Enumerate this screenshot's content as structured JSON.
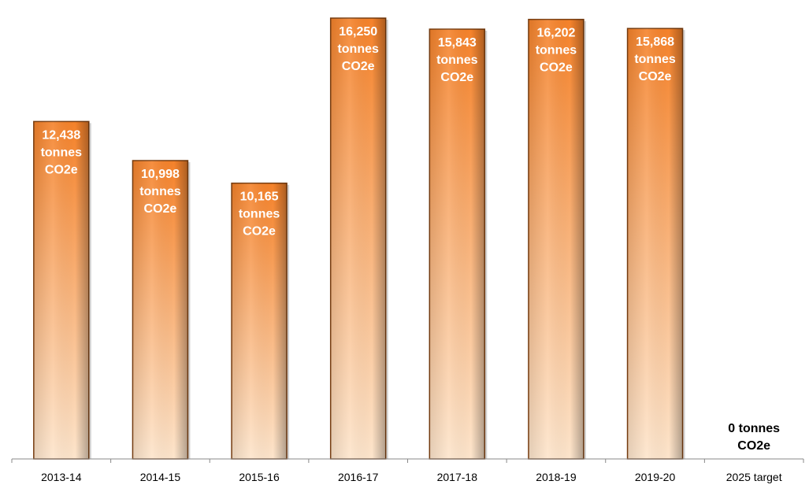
{
  "chart_data": {
    "type": "bar",
    "title": "",
    "xlabel": "",
    "ylabel": "",
    "categories": [
      "2013-14",
      "2014-15",
      "2015-16",
      "2016-17",
      "2017-18",
      "2018-19",
      "2019-20",
      "2025 target"
    ],
    "values": [
      12438,
      10998,
      10165,
      16250,
      15843,
      16202,
      15868,
      0
    ],
    "data_labels": [
      [
        "12,438",
        "tonnes",
        "CO2e"
      ],
      [
        "10,998",
        "tonnes",
        "CO2e"
      ],
      [
        "10,165",
        "tonnes",
        "CO2e"
      ],
      [
        "16,250",
        "tonnes",
        "CO2e"
      ],
      [
        "15,843",
        "tonnes",
        "CO2e"
      ],
      [
        "16,202",
        "tonnes",
        "CO2e"
      ],
      [
        "15,868",
        "tonnes",
        "CO2e"
      ],
      [
        "0 tonnes",
        "CO2e"
      ]
    ],
    "ylim": [
      0,
      16250
    ],
    "grid": false,
    "legend": "none",
    "colors": {
      "bar_top": "#f5822a",
      "bar_bottom": "#fde5cc",
      "bar_edge": "#7a3e10",
      "axis": "#888888",
      "label_on_bar": "#ffffff",
      "label_off_bar": "#000000"
    }
  }
}
